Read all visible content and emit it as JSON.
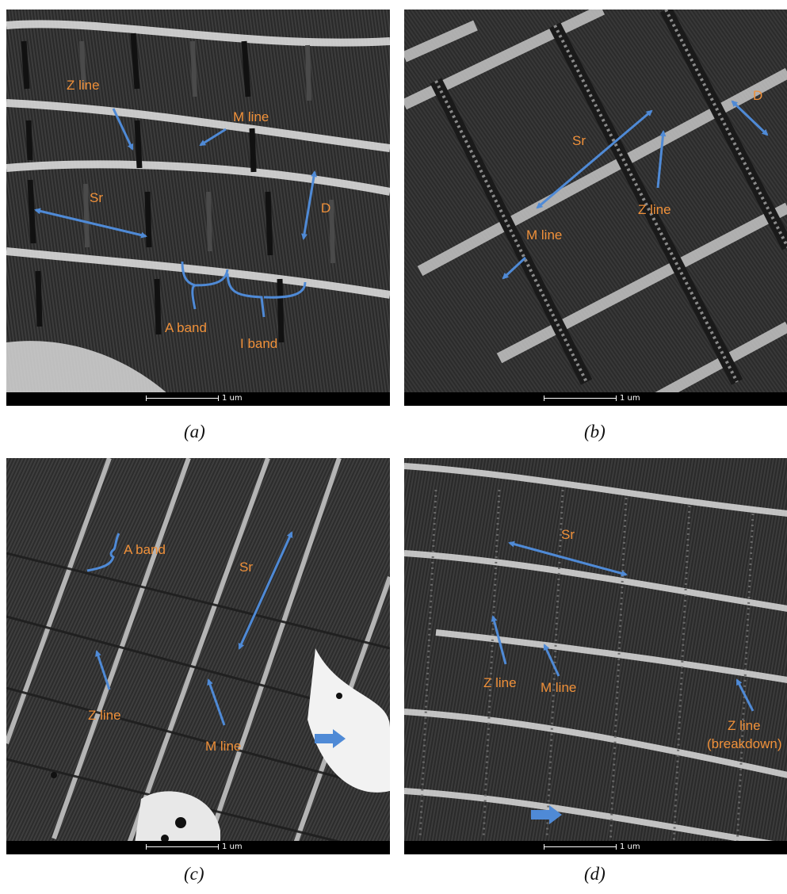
{
  "colors": {
    "annotation": "#f0913a",
    "arrow": "#4f8ad6",
    "scale_bar_bg": "#000000"
  },
  "panels": {
    "a": {
      "caption": "(a)",
      "scale": "1 um",
      "labels": {
        "z_line": "Z line",
        "m_line": "M line",
        "sr": "Sr",
        "d": "D",
        "a_band": "A band",
        "i_band": "I band"
      }
    },
    "b": {
      "caption": "(b)",
      "scale": "1 um",
      "labels": {
        "d": "D",
        "sr": "Sr",
        "z_line": "Z line",
        "m_line": "M line"
      }
    },
    "c": {
      "caption": "(c)",
      "scale": "1 um",
      "labels": {
        "a_band": "A band",
        "sr": "Sr",
        "z_line": "Z line",
        "m_line": "M line"
      },
      "marker_icon": "block-arrow-icon"
    },
    "d": {
      "caption": "(d)",
      "scale": "1 um",
      "labels": {
        "sr": "Sr",
        "z_line": "Z line",
        "m_line": "M line",
        "z_line_breakdown_1": "Z line",
        "z_line_breakdown_2": "(breakdown)"
      },
      "marker_icon": "block-arrow-icon"
    }
  }
}
